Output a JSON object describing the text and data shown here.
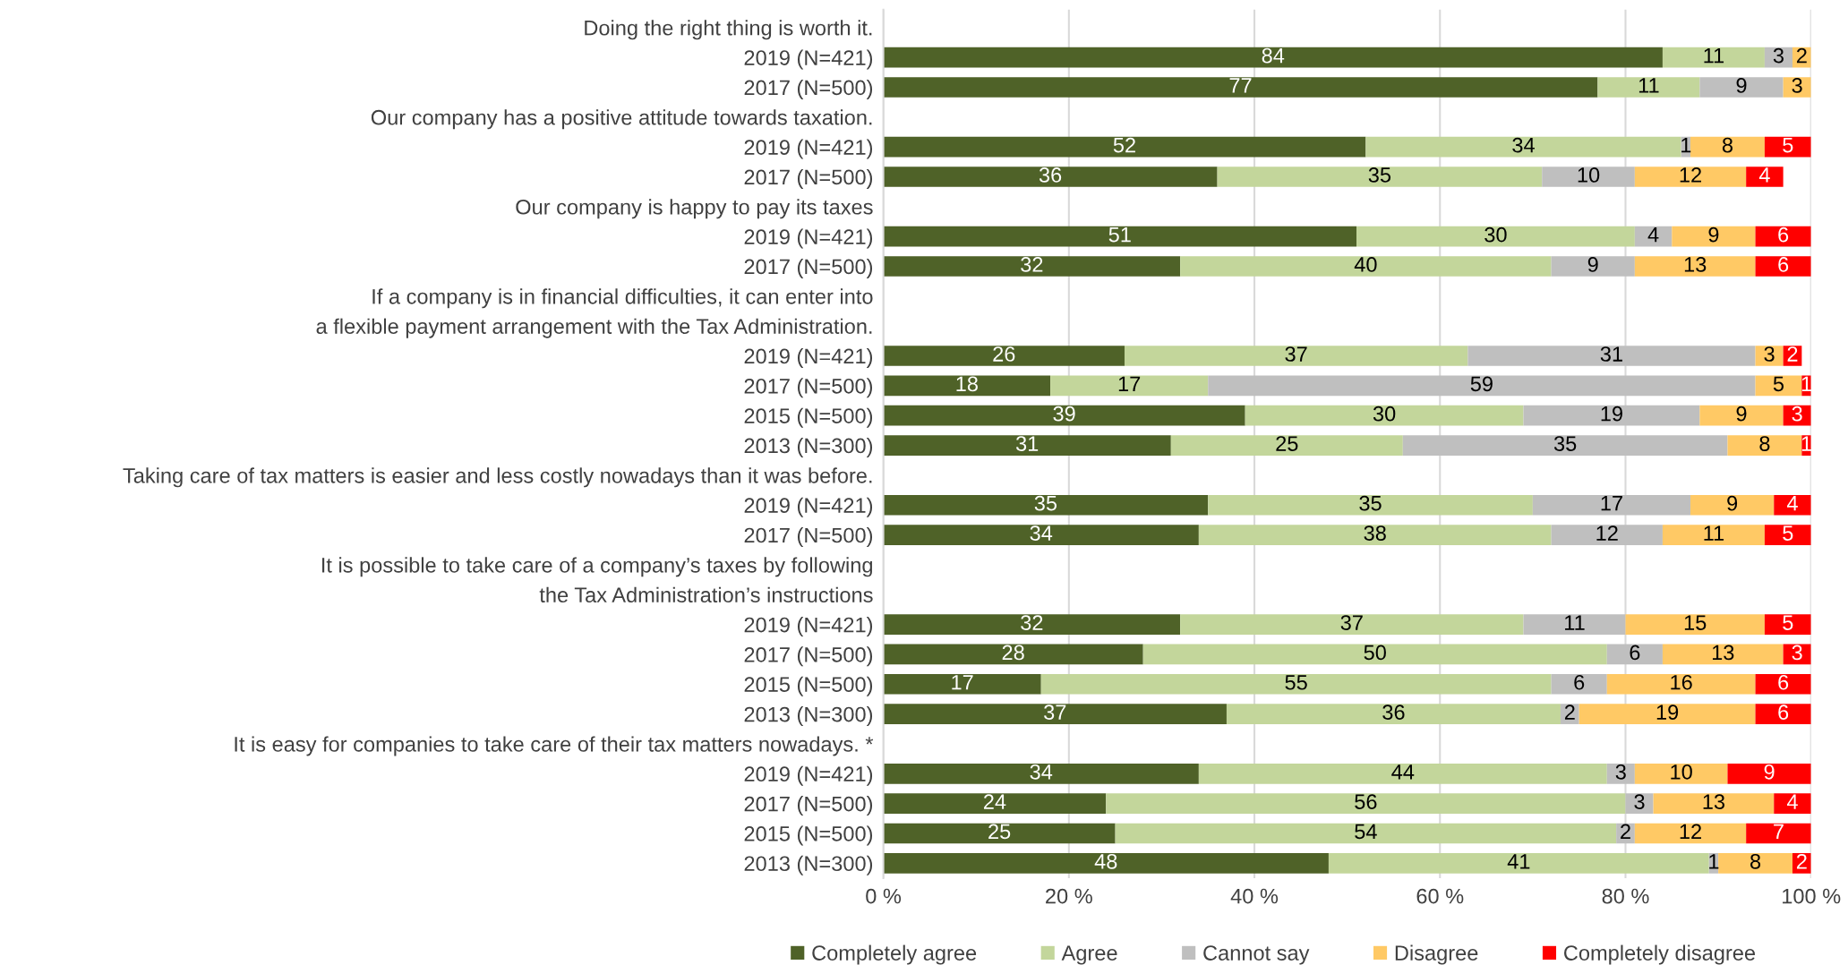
{
  "chart_data": {
    "type": "bar",
    "orientation": "horizontal",
    "stacked": true,
    "data_labels": true,
    "grid": "x",
    "legend": "bottom",
    "categories": [
      "Doing the right thing is worth it.",
      "2019 (N=421)",
      "2017 (N=500)",
      "Our company has a positive attitude towards taxation.",
      "2019 (N=421)",
      "2017 (N=500)",
      "Our company is happy to pay its taxes",
      "2019 (N=421)",
      "2017 (N=500)",
      "If a company is in financial difficulties, it can enter into",
      "a flexible payment arrangement with the Tax Administration.",
      "2019 (N=421)",
      "2017 (N=500)",
      "2015 (N=500)",
      "2013 (N=300)",
      "Taking care of tax matters is easier and less costly nowadays than it was before.",
      "2019 (N=421)",
      "2017 (N=500)",
      "It is possible to take care of a company’s taxes by following",
      "the Tax Administration’s instructions",
      "2019 (N=421)",
      "2017 (N=500)",
      "2015 (N=500)",
      "2013 (N=300)",
      "It is easy for companies to take care of their tax matters nowadays. *",
      "2019 (N=421)",
      "2017 (N=500)",
      "2015 (N=500)",
      "2013 (N=300)"
    ],
    "series": [
      {
        "name": "Completely agree",
        "color": "#4f6228",
        "values": [
          null,
          84,
          77,
          null,
          52,
          36,
          null,
          51,
          32,
          null,
          null,
          26,
          18,
          39,
          31,
          null,
          35,
          34,
          null,
          null,
          32,
          28,
          17,
          37,
          null,
          34,
          24,
          25,
          48
        ]
      },
      {
        "name": "Agree",
        "color": "#c3d69b",
        "values": [
          null,
          11,
          11,
          null,
          34,
          35,
          null,
          30,
          40,
          null,
          null,
          37,
          17,
          30,
          25,
          null,
          35,
          38,
          null,
          null,
          37,
          50,
          55,
          36,
          null,
          44,
          56,
          54,
          41
        ]
      },
      {
        "name": "Cannot say",
        "color": "#bfbfbf",
        "values": [
          null,
          3,
          9,
          null,
          1,
          10,
          null,
          4,
          9,
          null,
          null,
          31,
          59,
          19,
          35,
          null,
          17,
          12,
          null,
          null,
          11,
          6,
          6,
          2,
          null,
          3,
          3,
          2,
          1
        ]
      },
      {
        "name": "Disagree",
        "color": "#ffc965",
        "values": [
          null,
          2,
          3,
          null,
          8,
          12,
          null,
          9,
          13,
          null,
          null,
          3,
          5,
          9,
          8,
          null,
          9,
          11,
          null,
          null,
          15,
          13,
          16,
          19,
          null,
          10,
          13,
          12,
          8
        ]
      },
      {
        "name": "Completely disagree",
        "color": "#ff0000",
        "values": [
          null,
          0,
          0,
          null,
          5,
          4,
          null,
          6,
          6,
          null,
          null,
          2,
          1,
          3,
          1,
          null,
          4,
          5,
          null,
          null,
          5,
          3,
          6,
          6,
          null,
          9,
          4,
          7,
          2
        ],
        "value_labels": [
          null,
          null,
          null,
          null,
          "5",
          "4",
          null,
          "6",
          "6",
          null,
          null,
          "2",
          "1",
          "3",
          "1",
          null,
          "4",
          "5",
          null,
          null,
          "5",
          "3",
          "6",
          "6",
          null,
          "9",
          "4",
          "7",
          "2"
        ]
      }
    ],
    "xlim": [
      0,
      100
    ],
    "xticks": [
      {
        "value": 0,
        "label": "0 %"
      },
      {
        "value": 20,
        "label": "20 %"
      },
      {
        "value": 40,
        "label": "40 %"
      },
      {
        "value": 60,
        "label": "60 %"
      },
      {
        "value": 80,
        "label": "80 %"
      },
      {
        "value": 100,
        "label": "100 %"
      }
    ]
  }
}
